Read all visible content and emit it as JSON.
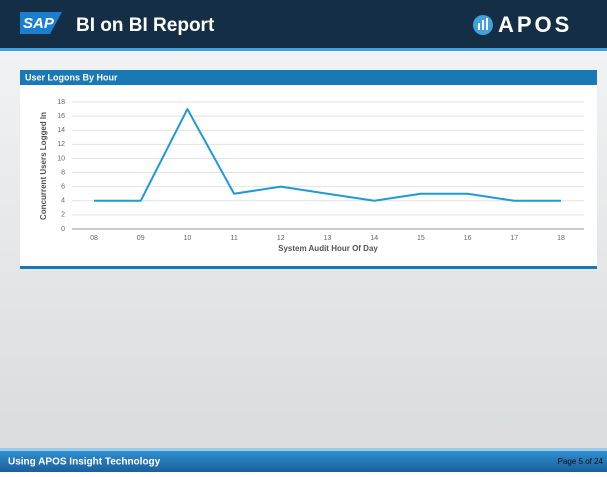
{
  "header": {
    "logo": "SAP",
    "title": "BI on BI Report",
    "brand": "APOS"
  },
  "chart_data": {
    "type": "line",
    "title": "User Logons By Hour",
    "x_label": "System Audit Hour Of Day",
    "y_label": "Concurrent Users Logged In",
    "categories": [
      "08",
      "09",
      "10",
      "11",
      "12",
      "13",
      "14",
      "15",
      "16",
      "17",
      "18"
    ],
    "values": [
      4,
      4,
      17,
      5,
      6,
      5,
      4,
      5,
      5,
      4,
      4
    ],
    "color": "#1e9ad6",
    "ylim": [
      0,
      18
    ],
    "yticks": [
      0,
      2,
      4,
      6,
      8,
      10,
      12,
      14,
      16,
      18
    ],
    "grid": true
  },
  "footer": {
    "left": "Using APOS Insight Technology",
    "right": "Page 5 of 24"
  }
}
